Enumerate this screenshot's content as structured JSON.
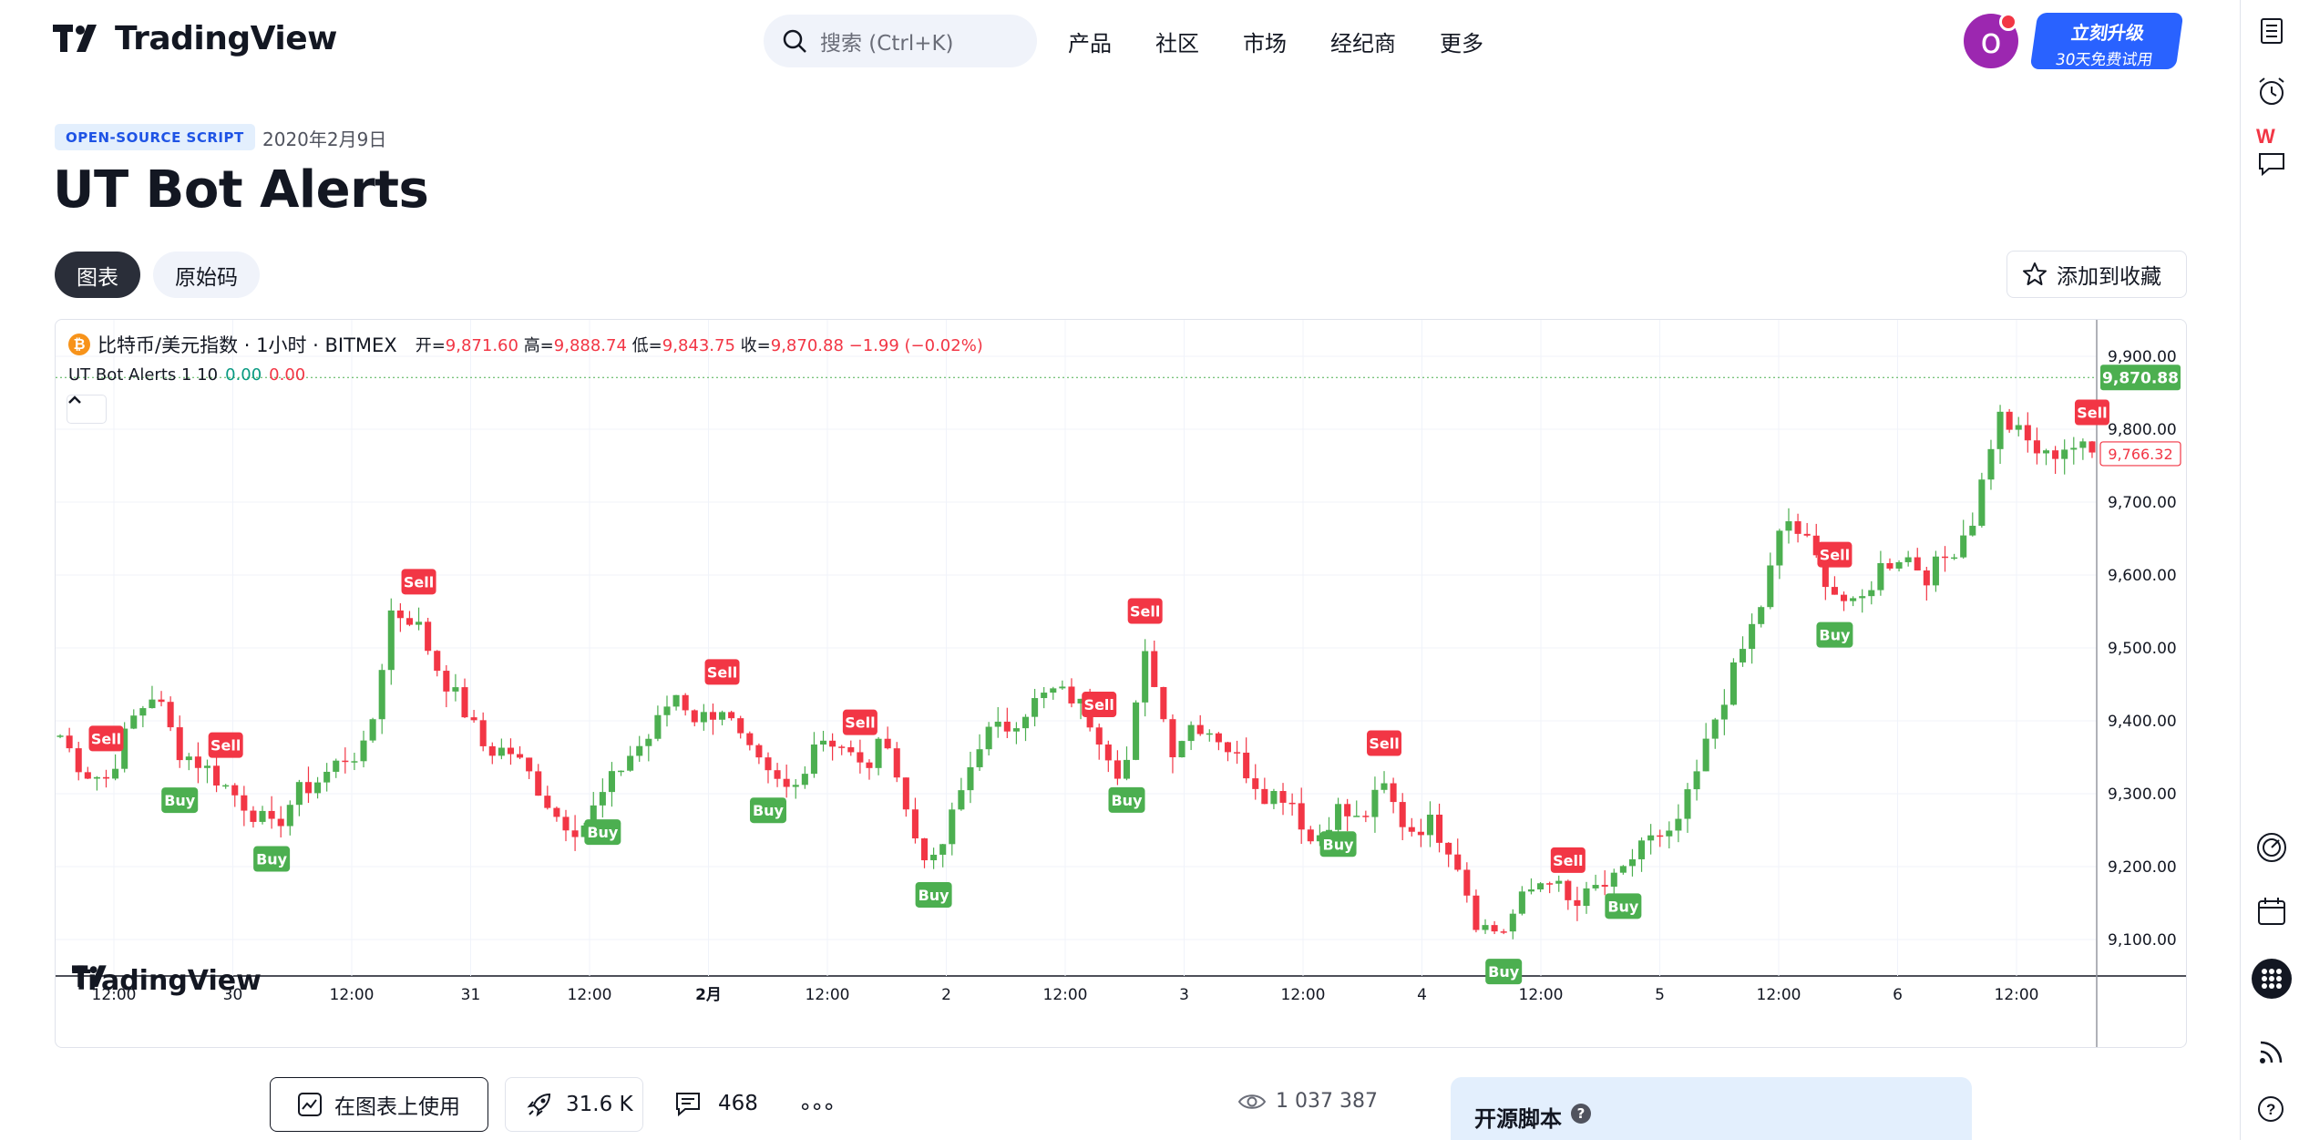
{
  "header": {
    "logo_text": "TradingView",
    "search_placeholder": "搜索 (Ctrl+K)",
    "nav": [
      "产品",
      "社区",
      "市场",
      "经纪商",
      "更多"
    ],
    "avatar_letter": "o",
    "upgrade_title": "立刻升级",
    "upgrade_sub": "30天免费试用"
  },
  "script": {
    "badge": "OPEN-SOURCE SCRIPT",
    "date": "2020年2月9日",
    "title": "UT Bot Alerts",
    "tabs": [
      "图表",
      "原始码"
    ],
    "favorite_label": "添加到收藏"
  },
  "chart": {
    "symbol": "比特币/美元指数 · 1小时 · BITMEX",
    "ohlc": {
      "open_label": "开=",
      "open": "9,871.60",
      "high_label": "高=",
      "high": "9,888.74",
      "low_label": "低=",
      "low": "9,843.75",
      "close_label": "收=",
      "close": "9,870.88",
      "change": "−1.99 (−0.02%)"
    },
    "indicator": {
      "name": "UT Bot Alerts 1 10",
      "v1": "0.00",
      "v2": "0.00"
    },
    "watermark": "TradingView",
    "current_price_label": "9,870.88",
    "secondary_price_label": "9,766.32",
    "colors": {
      "up": "#4caf50",
      "down": "#f23645",
      "current": "#4caf50"
    }
  },
  "chart_data": {
    "type": "candlestick",
    "ylim": [
      9050,
      9950
    ],
    "y_ticks": [
      "9,900.00",
      "9,800.00",
      "9,700.00",
      "9,600.00",
      "9,500.00",
      "9,400.00",
      "9,300.00",
      "9,200.00",
      "9,100.00"
    ],
    "x_ticks": [
      "12:00",
      "30",
      "12:00",
      "31",
      "12:00",
      "2月",
      "12:00",
      "2",
      "12:00",
      "3",
      "12:00",
      "4",
      "12:00",
      "5",
      "12:00",
      "6",
      "12:00"
    ],
    "key_prices": [
      9380,
      9330,
      9320,
      9400,
      9440,
      9360,
      9340,
      9310,
      9280,
      9250,
      9300,
      9320,
      9350,
      9360,
      9550,
      9540,
      9470,
      9420,
      9360,
      9360,
      9320,
      9270,
      9250,
      9300,
      9350,
      9380,
      9440,
      9400,
      9420,
      9360,
      9320,
      9300,
      9380,
      9370,
      9330,
      9380,
      9250,
      9200,
      9290,
      9380,
      9390,
      9420,
      9440,
      9430,
      9380,
      9320,
      9500,
      9360,
      9400,
      9380,
      9340,
      9300,
      9300,
      9230,
      9280,
      9260,
      9310,
      9250,
      9260,
      9220,
      9120,
      9110,
      9160,
      9190,
      9140,
      9170,
      9180,
      9240,
      9230,
      9300,
      9400,
      9480,
      9560,
      9680,
      9640,
      9580,
      9550,
      9610,
      9630,
      9600,
      9630,
      9680,
      9820,
      9790,
      9760,
      9780,
      9766
    ],
    "signals": [
      {
        "type": "Sell",
        "i": 2
      },
      {
        "type": "Buy",
        "i": 5
      },
      {
        "type": "Sell",
        "i": 7
      },
      {
        "type": "Buy",
        "i": 9
      },
      {
        "type": "Sell",
        "i": 15
      },
      {
        "type": "Buy",
        "i": 23
      },
      {
        "type": "Sell",
        "i": 28
      },
      {
        "type": "Buy",
        "i": 30
      },
      {
        "type": "Sell",
        "i": 34
      },
      {
        "type": "Buy",
        "i": 37
      },
      {
        "type": "Sell",
        "i": 44
      },
      {
        "type": "Buy",
        "i": 45
      },
      {
        "type": "Sell",
        "i": 46
      },
      {
        "type": "Buy",
        "i": 54
      },
      {
        "type": "Sell",
        "i": 56
      },
      {
        "type": "Buy",
        "i": 61
      },
      {
        "type": "Sell",
        "i": 64
      },
      {
        "type": "Buy",
        "i": 66
      },
      {
        "type": "Sell",
        "i": 75
      },
      {
        "type": "Buy",
        "i": 75
      },
      {
        "type": "Sell",
        "i": 86
      }
    ]
  },
  "footer": {
    "use_on_chart": "在图表上使用",
    "boosts": "31.6 K",
    "comments": "468",
    "more": "∘∘∘",
    "views": "1 037 387",
    "panel_title": "开源脚本",
    "help": "?"
  }
}
